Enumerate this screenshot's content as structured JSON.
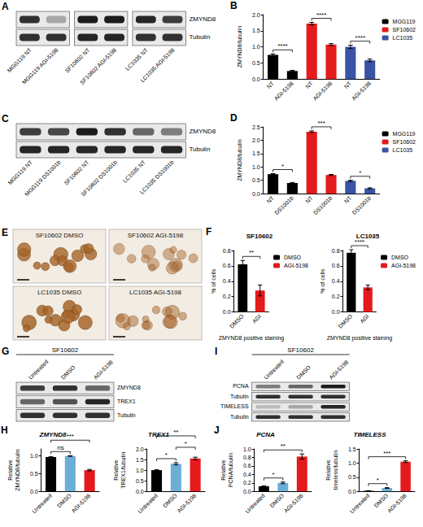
{
  "chart_data": [
    {
      "panel": "B",
      "type": "bar",
      "categories": [
        "NT",
        "AGI-5198",
        "NT",
        "AGI-5198",
        "NT",
        "AGI-5198"
      ],
      "ylabel": "ZMYND8/tubulin",
      "ylim": [
        0,
        2
      ],
      "yticks": [
        {
          "value": 0,
          "label": "0.0"
        },
        0.5,
        {
          "value": 1,
          "label": "1.0"
        },
        1.5,
        {
          "value": 2,
          "label": "2.0"
        }
      ],
      "legend": "right",
      "series": [
        {
          "name": "MGG119",
          "color": "#000000",
          "values": [
            0.75,
            0.25,
            null,
            null,
            null,
            null
          ],
          "errors": [
            0.03,
            0.02,
            null,
            null,
            null,
            null
          ]
        },
        {
          "name": "SF10602",
          "color": "#e41a1c",
          "values": [
            null,
            null,
            1.72,
            1.07,
            null,
            null
          ],
          "errors": [
            null,
            null,
            0.04,
            0.03,
            null,
            null
          ]
        },
        {
          "name": "LC1035",
          "color": "#3a53a4",
          "values": [
            null,
            null,
            null,
            null,
            1.0,
            0.58
          ],
          "errors": [
            null,
            null,
            null,
            null,
            0.05,
            0.04
          ]
        }
      ],
      "annotations": [
        {
          "text": "****",
          "between": [
            0,
            1
          ]
        },
        {
          "text": "****",
          "between": [
            2,
            3
          ]
        },
        {
          "text": "****",
          "between": [
            4,
            5
          ]
        }
      ]
    },
    {
      "panel": "D",
      "type": "bar",
      "categories": [
        "NT",
        "DS1001b",
        "NT",
        "DS1001b",
        "NT",
        "DS1001b"
      ],
      "ylabel": "ZMYND8/tubulin",
      "ylim": [
        0,
        2.5
      ],
      "yticks": [
        {
          "value": 0,
          "label": "0.0"
        },
        0.5,
        {
          "value": 1,
          "label": "1.0"
        },
        1.5,
        {
          "value": 2,
          "label": "2.0"
        },
        2.5
      ],
      "legend": "right",
      "series": [
        {
          "name": "MGG119",
          "color": "#000000",
          "values": [
            0.73,
            0.4,
            null,
            null,
            null,
            null
          ],
          "errors": [
            0.02,
            0.02,
            null,
            null,
            null,
            null
          ]
        },
        {
          "name": "SF10602",
          "color": "#e41a1c",
          "values": [
            null,
            null,
            2.32,
            0.7,
            null,
            null
          ],
          "errors": [
            null,
            null,
            0.03,
            0.02,
            null,
            null
          ]
        },
        {
          "name": "LC1035",
          "color": "#3a53a4",
          "values": [
            null,
            null,
            null,
            null,
            0.48,
            0.2
          ],
          "errors": [
            null,
            null,
            null,
            null,
            0.02,
            0.02
          ]
        }
      ],
      "annotations": [
        {
          "text": "*",
          "between": [
            0,
            1
          ]
        },
        {
          "text": "***",
          "between": [
            2,
            3
          ]
        },
        {
          "text": "*",
          "between": [
            4,
            5
          ]
        }
      ]
    },
    {
      "panel": "F",
      "type": "bar",
      "title": "SF10602",
      "categories": [
        "DMSO",
        "AGI"
      ],
      "ylabel": "% of cells",
      "xlabel": "ZMYND8 positive staining",
      "ylim": [
        0,
        0.8
      ],
      "yticks": [
        {
          "value": 0,
          "label": "0.0"
        },
        0.2,
        0.4,
        0.6,
        0.8
      ],
      "legend": "right",
      "series": [
        {
          "name": "DMSO",
          "color": "#000000",
          "values": [
            0.62,
            null
          ],
          "errors": [
            0.05,
            null
          ]
        },
        {
          "name": "AGI-5198",
          "color": "#e41a1c",
          "values": [
            null,
            0.28
          ],
          "errors": [
            null,
            0.07
          ]
        }
      ],
      "annotations": [
        {
          "text": "**",
          "between": [
            0,
            1
          ]
        }
      ]
    },
    {
      "type": "bar",
      "title": "LC1035",
      "categories": [
        "DMSO",
        "AGI"
      ],
      "ylabel": "% of cells",
      "xlabel": "ZMYND8 positive staining",
      "ylim": [
        0,
        0.8
      ],
      "yticks": [
        {
          "value": 0,
          "label": "0.0"
        },
        0.2,
        0.4,
        0.6,
        0.8
      ],
      "legend": "right",
      "series": [
        {
          "name": "DMSO",
          "color": "#000000",
          "values": [
            0.77,
            null
          ],
          "errors": [
            0.04,
            null
          ]
        },
        {
          "name": "AGI-5198",
          "color": "#e41a1c",
          "values": [
            null,
            0.32
          ],
          "errors": [
            null,
            0.03
          ]
        }
      ],
      "annotations": [
        {
          "text": "****",
          "between": [
            0,
            1
          ]
        }
      ]
    },
    {
      "panel": "H",
      "type": "bar",
      "title": "ZMYND8",
      "categories": [
        "Untreated",
        "DMSO",
        "AGI-5198"
      ],
      "ylabel": "Relative ZMYND8/tubulin",
      "ylim": [
        0,
        1.2
      ],
      "yticks": [
        {
          "value": 0,
          "label": "0.0"
        },
        0.5,
        {
          "value": 1,
          "label": "1.0"
        }
      ],
      "values": [
        0.97,
        1.0,
        0.6
      ],
      "errors": [
        0.01,
        0.01,
        0.02
      ],
      "colors": [
        "#000000",
        "#6baed6",
        "#e41a1c"
      ],
      "annotations": [
        {
          "text": "ns",
          "between": [
            0,
            1
          ]
        },
        {
          "text": "***",
          "between": [
            0,
            2
          ]
        }
      ]
    },
    {
      "type": "bar",
      "title": "TREX1",
      "categories": [
        "Untreated",
        "DMSO",
        "AGI-5198"
      ],
      "ylabel": "Relative TREX1/tubulin",
      "ylim": [
        0,
        2
      ],
      "yticks": [
        {
          "value": 0,
          "label": "0.0"
        },
        0.5,
        {
          "value": 1,
          "label": "1.0"
        },
        1.5,
        {
          "value": 2,
          "label": "2.0"
        }
      ],
      "values": [
        1.0,
        1.3,
        1.55
      ],
      "errors": [
        0.02,
        0.05,
        0.06
      ],
      "colors": [
        "#000000",
        "#6baed6",
        "#e41a1c"
      ],
      "annotations": [
        {
          "text": "*",
          "between": [
            0,
            1
          ]
        },
        {
          "text": "*",
          "between": [
            1,
            2
          ]
        },
        {
          "text": "**",
          "between": [
            0,
            2
          ]
        }
      ]
    },
    {
      "panel": "J",
      "type": "bar",
      "title": "PCNA",
      "categories": [
        "Untreated",
        "DMSO",
        "AGI-5198"
      ],
      "ylabel": "Relative PCNA/tubulin",
      "ylim": [
        0,
        1
      ],
      "yticks": [
        {
          "value": 0,
          "label": "0.0"
        },
        0.2,
        0.4,
        0.6,
        0.8,
        {
          "value": 1,
          "label": "1.0"
        }
      ],
      "values": [
        0.12,
        0.2,
        0.82
      ],
      "errors": [
        0.01,
        0.02,
        0.06
      ],
      "colors": [
        "#000000",
        "#6baed6",
        "#e41a1c"
      ],
      "annotations": [
        {
          "text": "*",
          "between": [
            0,
            1
          ]
        },
        {
          "text": "**",
          "between": [
            0,
            2
          ]
        }
      ]
    },
    {
      "type": "bar",
      "title": "TIMELESS",
      "categories": [
        "Untreated",
        "DMSO",
        "AGI-5198"
      ],
      "ylabel": "Relative timeless/tubulin",
      "ylim": [
        0,
        1.5
      ],
      "yticks": [
        {
          "value": 0,
          "label": "0.0"
        },
        0.5,
        {
          "value": 1,
          "label": "1.0"
        },
        1.5
      ],
      "values": [
        0.02,
        0.12,
        1.05
      ],
      "errors": [
        0.005,
        0.01,
        0.03
      ],
      "colors": [
        "#000000",
        "#6baed6",
        "#e41a1c"
      ],
      "annotations": [
        {
          "text": "*",
          "between": [
            0,
            1
          ]
        },
        {
          "text": "***",
          "between": [
            0,
            2
          ]
        }
      ]
    }
  ],
  "blots": [
    {
      "panel": "A",
      "lanes": [
        "MGG119 NT",
        "MGG119 AGI-5198",
        "SF10602 NT",
        "SF10602 AGI-5198",
        "LC1035 NT",
        "LC1035 AGI-5198"
      ],
      "boxes": [
        2,
        2,
        2
      ],
      "rows": [
        {
          "label": "ZMYND8",
          "bands": [
            0.85,
            0.3,
            0.95,
            0.95,
            0.9,
            0.8
          ]
        },
        {
          "label": "Tubulin",
          "bands": [
            0.85,
            0.85,
            0.9,
            0.9,
            0.85,
            0.85
          ]
        }
      ]
    },
    {
      "panel": "C",
      "lanes": [
        "MGG119 NT",
        "MGG119 DS1001b",
        "SF10602 NT",
        "SF10602 DS1001b",
        "LC1035 NT",
        "LC1035 DS1001b"
      ],
      "boxes": [
        6
      ],
      "rows": [
        {
          "label": "ZMYND8",
          "bands": [
            0.8,
            0.75,
            0.95,
            0.85,
            0.6,
            0.5
          ]
        },
        {
          "label": "Tubulin",
          "bands": [
            0.9,
            0.9,
            0.9,
            0.9,
            0.9,
            0.9
          ]
        }
      ]
    },
    {
      "panel": "G",
      "header": "SF10602",
      "lanes": [
        "Untreated",
        "DMSO",
        "AGI-5198"
      ],
      "boxes": [
        3
      ],
      "rows": [
        {
          "label": "ZMYND8",
          "bands": [
            0.8,
            0.85,
            0.6
          ]
        },
        {
          "label": "TREX1",
          "bands": [
            0.6,
            0.7,
            0.9
          ]
        },
        {
          "label": "Tubulin",
          "bands": [
            0.85,
            0.85,
            0.85
          ]
        }
      ]
    },
    {
      "panel": "I",
      "header": "SF10602",
      "lanes": [
        "Untreated",
        "DMSO",
        "AGI-5198"
      ],
      "boxes": [
        3
      ],
      "rows": [
        {
          "label": "PCNA",
          "bands": [
            0.5,
            0.6,
            0.95
          ]
        },
        {
          "label": "Tubulin",
          "bands": [
            0.85,
            0.85,
            0.85
          ]
        },
        {
          "label": "TIMELESS",
          "bands": [
            0.2,
            0.3,
            0.9
          ]
        },
        {
          "label": "Tubulin",
          "bands": [
            0.85,
            0.85,
            0.85
          ]
        }
      ]
    }
  ],
  "images": {
    "panel": "E",
    "items": [
      {
        "title": "SF10602 DMSO",
        "stain": 0.8
      },
      {
        "title": "SF10602 AGI-5198",
        "stain": 0.35
      },
      {
        "title": "LC1035 DMSO",
        "stain": 0.85
      },
      {
        "title": "LC1035 AGI-5198",
        "stain": 0.4
      }
    ]
  }
}
